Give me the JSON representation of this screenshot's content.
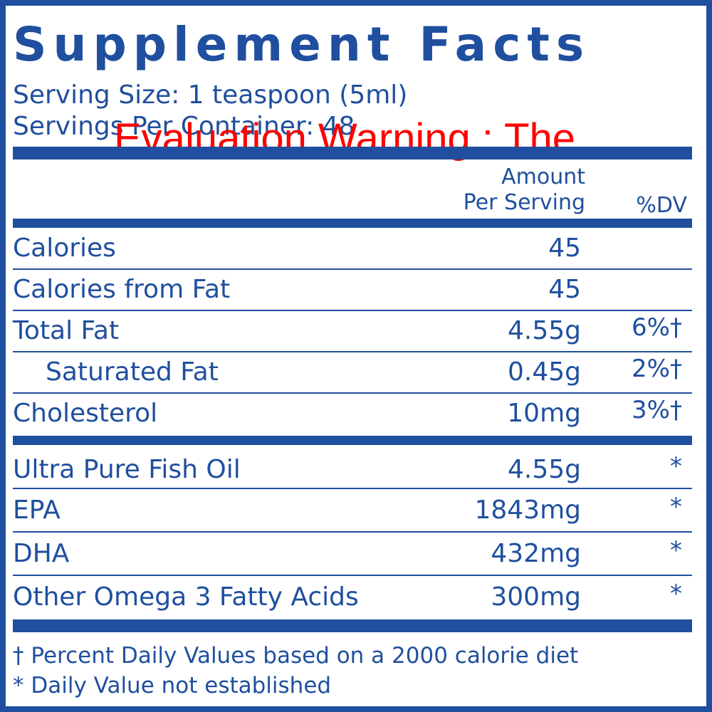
{
  "title": "Supplement Facts",
  "serving_size": "Serving Size: 1 teaspoon (5ml)",
  "servings_per_container": "Servings Per Container: 48",
  "watermark": "Evaluation Warning : The",
  "header": {
    "amount": "Amount",
    "per_serving": "Per Serving",
    "dv": "%DV"
  },
  "groups": [
    {
      "rows": [
        {
          "name": "Calories",
          "amount": "45"
        },
        {
          "name": "Calories from Fat",
          "amount": "45"
        },
        {
          "name": "Total Fat",
          "amount": "4.55g",
          "dv": "6%†"
        },
        {
          "name": "Saturated Fat",
          "amount": "0.45g",
          "dv": "2%†"
        },
        {
          "name": "Cholesterol",
          "amount": "10mg",
          "dv": "3%†"
        }
      ]
    },
    {
      "rows": [
        {
          "name": "Ultra Pure Fish Oil",
          "amount": "4.55g",
          "dv": "*"
        },
        {
          "name": "EPA",
          "amount": "1843mg",
          "dv": "*"
        },
        {
          "name": "DHA",
          "amount": "432mg",
          "dv": "*"
        },
        {
          "name": "Other Omega 3 Fatty Acids",
          "amount": "300mg",
          "dv": "*"
        }
      ]
    }
  ],
  "footnotes": [
    "† Percent Daily Values based on a 2000 calorie diet",
    "* Daily Value not established"
  ]
}
